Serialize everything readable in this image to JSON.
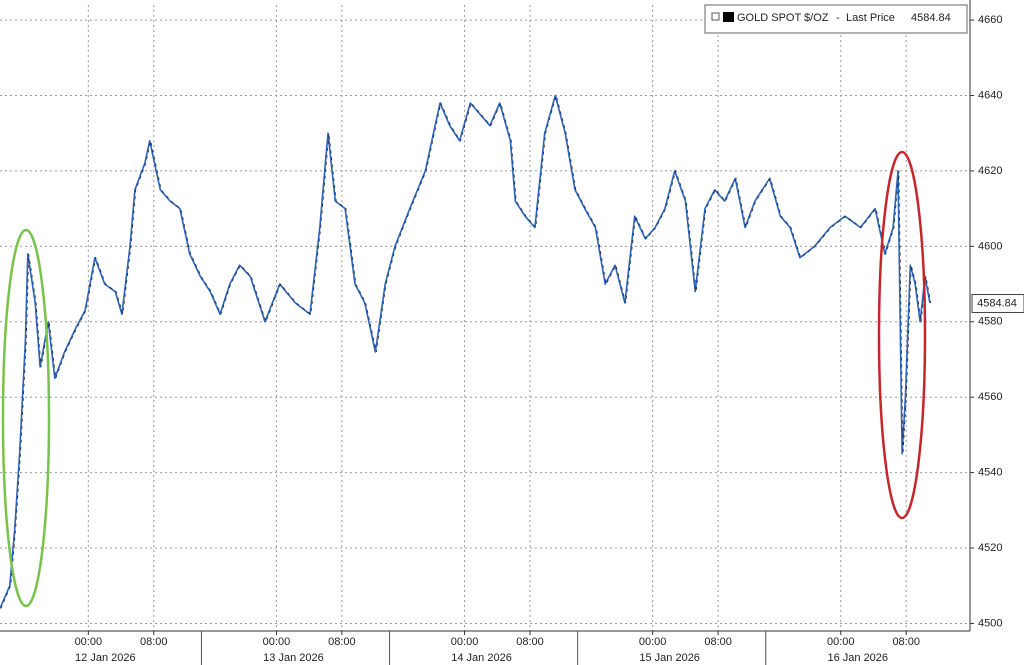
{
  "chart_data": {
    "type": "line",
    "series": [
      {
        "name": "GOLD SPOT $/OZ",
        "color": "#2c63b8",
        "x": [
          -10.8,
          -9.6,
          -9.0,
          -8.4,
          -7.7,
          -7.4,
          -6.5,
          -5.9,
          -4.9,
          -4.1,
          -2.9,
          -1.6,
          -0.4,
          0.8,
          2.0,
          3.3,
          4.1,
          5.1,
          5.7,
          6.9,
          7.5,
          8.8,
          10.0,
          11.2,
          12.4,
          13.7,
          14.9,
          16.1,
          17.3,
          18.5,
          19.8,
          21.6,
          23.4,
          25.3,
          27.1,
          28.3,
          29.3,
          30.2,
          31.4,
          32.6,
          33.8,
          35.1,
          36.3,
          37.5,
          39.3,
          41.2,
          43.0,
          44.2,
          45.4,
          46.7,
          47.9,
          49.1,
          50.3,
          51.6,
          52.2,
          53.4,
          54.6,
          55.8,
          57.1,
          58.3,
          59.5,
          60.7,
          62.0,
          63.2,
          64.4,
          65.6,
          66.8,
          68.1,
          69.3,
          70.5,
          71.7,
          73.0,
          74.2,
          75.4,
          76.6,
          77.8,
          79.1,
          80.3,
          81.5,
          83.3,
          84.6,
          85.8,
          87.0,
          88.8,
          90.7,
          92.5,
          94.4,
          96.2,
          97.4,
          98.4,
          99.0,
          99.5,
          99.9,
          100.5,
          101.1,
          101.7,
          102.3,
          102.9
        ],
        "values": [
          4504,
          4510,
          4525,
          4545,
          4575,
          4598,
          4585,
          4568,
          4580,
          4565,
          4572,
          4578,
          4583,
          4597,
          4590,
          4588,
          4582,
          4600,
          4615,
          4622,
          4628,
          4615,
          4612,
          4610,
          4598,
          4592,
          4588,
          4582,
          4590,
          4595,
          4592,
          4580,
          4590,
          4585,
          4582,
          4605,
          4630,
          4612,
          4610,
          4590,
          4585,
          4572,
          4590,
          4600,
          4610,
          4620,
          4638,
          4632,
          4628,
          4638,
          4635,
          4632,
          4638,
          4628,
          4612,
          4608,
          4605,
          4630,
          4640,
          4630,
          4615,
          4610,
          4605,
          4590,
          4595,
          4585,
          4608,
          4602,
          4605,
          4610,
          4620,
          4612,
          4588,
          4610,
          4615,
          4612,
          4618,
          4605,
          4612,
          4618,
          4608,
          4605,
          4597,
          4600,
          4605,
          4608,
          4605,
          4610,
          4598,
          4605,
          4620,
          4545,
          4560,
          4595,
          4590,
          4580,
          4592,
          4585
        ]
      }
    ],
    "legend_label": "Last Price",
    "last_price": 4584.84,
    "xlim": [
      -10.8,
      107.8
    ],
    "xticks": [
      {
        "value": 0,
        "label": "00:00"
      },
      {
        "value": 8,
        "label": "08:00"
      },
      {
        "value": 23,
        "label": "00:00"
      },
      {
        "value": 31,
        "label": "08:00"
      },
      {
        "value": 46,
        "label": "00:00"
      },
      {
        "value": 54,
        "label": "08:00"
      },
      {
        "value": 69,
        "label": "00:00"
      },
      {
        "value": 77,
        "label": "08:00"
      },
      {
        "value": 92,
        "label": "00:00"
      },
      {
        "value": 100,
        "label": "08:00"
      }
    ],
    "dates": [
      "12 Jan 2026",
      "13 Jan 2026",
      "14 Jan 2026",
      "15 Jan 2026",
      "16 Jan 2026"
    ],
    "ylim": [
      4498,
      4664
    ],
    "yticks": [
      4500,
      4520,
      4540,
      4560,
      4580,
      4600,
      4620,
      4640,
      4660
    ],
    "grid": true
  }
}
